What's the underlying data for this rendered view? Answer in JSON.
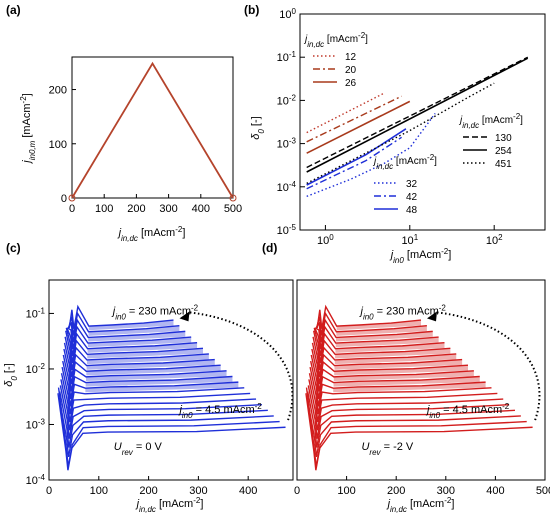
{
  "chart_data": [
    {
      "panel": "(a)",
      "type": "line",
      "xlabel": "j_in,dc [mAcm^-2]",
      "ylabel": "j_in0,m [mAcm^-2]",
      "xlim": [
        0,
        500
      ],
      "ylim": [
        0,
        260
      ],
      "xticks": [
        "0",
        "100",
        "200",
        "300",
        "400",
        "500"
      ],
      "yticks": [
        "0",
        "100",
        "200"
      ],
      "series": [
        {
          "color": "#b5442c",
          "x": [
            0,
            250,
            500
          ],
          "y": [
            0,
            248,
            0
          ]
        }
      ]
    },
    {
      "panel": "(b)",
      "type": "line",
      "scale": "log-log",
      "xlabel": "j_in0 [mAcm^-2]",
      "ylabel": "δ0 [-]",
      "xlim": [
        0.5,
        400
      ],
      "ylim": [
        1e-05,
        1
      ],
      "xticks": [
        "10^0",
        "10^1",
        "10^2"
      ],
      "yticks": [
        "10^-5",
        "10^-4",
        "10^-3",
        "10^-2",
        "10^-1",
        "10^0"
      ],
      "legend_title": "j_in,dc [mAcm^-2]",
      "series": [
        {
          "name": "12",
          "color": "#c0392b",
          "dash": "dot",
          "x": [
            0.6,
            5
          ],
          "y": [
            0.0018,
            0.0148
          ]
        },
        {
          "name": "20",
          "color": "#a83a1c",
          "dash": "dashdot",
          "x": [
            0.6,
            8
          ],
          "y": [
            0.0011,
            0.0125
          ]
        },
        {
          "name": "26",
          "color": "#a83a1c",
          "dash": "solid",
          "x": [
            0.6,
            10
          ],
          "y": [
            0.0006,
            0.0095
          ]
        },
        {
          "name": "32",
          "color": "#1f2fd8",
          "dash": "dot",
          "x": [
            0.6,
            2,
            5,
            10,
            20
          ],
          "y": [
            6e-05,
            0.00015,
            0.00035,
            0.0008,
            0.005
          ]
        },
        {
          "name": "42",
          "color": "#1f2fd8",
          "dash": "dashdot",
          "x": [
            0.6,
            3,
            8
          ],
          "y": [
            9e-05,
            0.0004,
            0.0014
          ]
        },
        {
          "name": "48",
          "color": "#1f2fd8",
          "dash": "solid",
          "x": [
            0.6,
            3,
            9
          ],
          "y": [
            0.00011,
            0.00055,
            0.0022
          ]
        },
        {
          "name": "130",
          "color": "#000000",
          "dash": "dash",
          "x": [
            0.6,
            250
          ],
          "y": [
            0.00028,
            0.1
          ]
        },
        {
          "name": "254",
          "color": "#000000",
          "dash": "solid",
          "x": [
            0.6,
            250
          ],
          "y": [
            0.00022,
            0.095
          ]
        },
        {
          "name": "451",
          "color": "#000000",
          "dash": "dot",
          "x": [
            0.6,
            10,
            50,
            100
          ],
          "y": [
            0.00012,
            0.002,
            0.012,
            0.025
          ]
        }
      ],
      "legend_red": [
        "12",
        "20",
        "26"
      ],
      "legend_blue": [
        "32",
        "42",
        "48"
      ],
      "legend_black": [
        "130",
        "254",
        "451"
      ]
    },
    {
      "panel": "(c)",
      "type": "line",
      "scale": "log-y",
      "xlabel": "j_in,dc [mAcm^-2]",
      "ylabel": "δ0 [-]",
      "xlim": [
        0,
        490
      ],
      "ylim": [
        0.0001,
        0.4
      ],
      "xticks": [
        "0",
        "100",
        "200",
        "300",
        "400"
      ],
      "yticks": [
        "10^-4",
        "10^-3",
        "10^-2",
        "10^-1"
      ],
      "color": "#1f2fd8",
      "curve_family_top": "j_in0 = 230 mAcm^-2",
      "curve_family_bottom": "j_in0 = 4.5 mAcm^-2",
      "condition": "U_rev = 0 V",
      "peak": {
        "x": 250,
        "y": 0.075
      }
    },
    {
      "panel": "(d)",
      "type": "line",
      "scale": "log-y",
      "xlabel": "j_in,dc [mAcm^-2]",
      "xlim": [
        0,
        500
      ],
      "ylim": [
        0.0001,
        0.4
      ],
      "xticks": [
        "0",
        "100",
        "200",
        "300",
        "400",
        "500"
      ],
      "color": "#d21d1d",
      "curve_family_top": "j_in0 = 230 mAcm^-2",
      "curve_family_bottom": "j_in0 = 4.5 mAcm^-2",
      "condition": "U_rev = -2 V",
      "peak": {
        "x": 250,
        "y": 0.075
      }
    }
  ],
  "labels": {
    "a": "(a)",
    "b": "(b)",
    "c": "(c)",
    "d": "(d)",
    "b_legend_title": "j",
    "b_legend_title_sub": "in,dc",
    "b_legend_title_unit": " [mAcm",
    "b_legend_title_exp": "-2",
    "b_legend_title_end": "]"
  }
}
